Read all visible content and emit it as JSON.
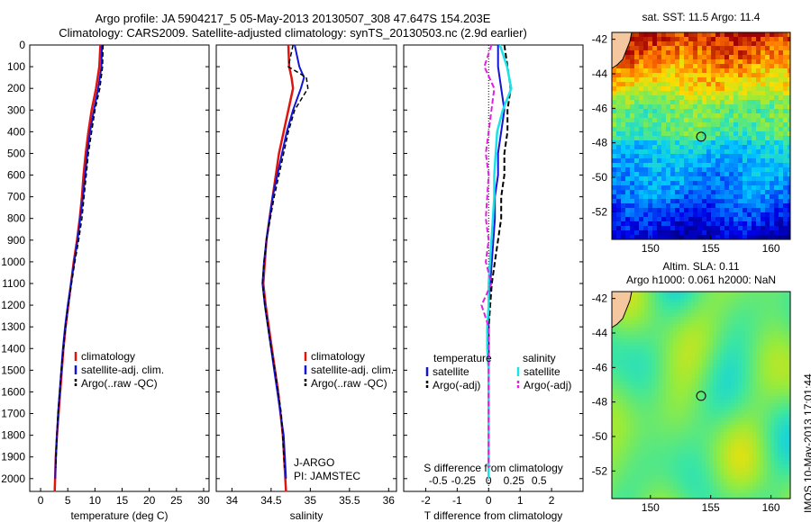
{
  "header": {
    "title_line1": "Argo profile: JA 5904217_5 05-May-2013 20130507_308 47.647S 154.203E",
    "title_line2": "Climatology: CARS2009. Satellite-adjusted climatology: synTS_20130503.nc (2.9d earlier)"
  },
  "colors": {
    "climatology": "#e0140f",
    "satellite": "#1414d6",
    "argo": "#000000",
    "salinity_satellite": "#19e3e6",
    "salinity_argo": "#e020e0"
  },
  "depth_ticks": [
    "0",
    "100",
    "200",
    "300",
    "400",
    "500",
    "600",
    "700",
    "800",
    "900",
    "1000",
    "1100",
    "1200",
    "1300",
    "1400",
    "1500",
    "1600",
    "1700",
    "1800",
    "1900",
    "2000"
  ],
  "panels": {
    "temperature": {
      "xlabel": "temperature (deg C)",
      "ticks": [
        "0",
        "5",
        "10",
        "15",
        "20",
        "25",
        "30"
      ],
      "legend": [
        "climatology",
        "satellite-adj. clim.",
        "Argo(..raw -QC)"
      ]
    },
    "salinity": {
      "xlabel": "salinity",
      "ticks": [
        "34",
        "34.5",
        "35",
        "35.5",
        "36"
      ],
      "legend": [
        "climatology",
        "satellite-adj. clim.",
        "Argo(..raw -QC)"
      ],
      "annotation1": "J-ARGO",
      "annotation2": "PI: JAMSTEC"
    },
    "difference": {
      "xlabel": "T difference from climatology",
      "top_label": "S difference from climatology",
      "t_ticks": [
        "-2",
        "-1",
        "0",
        "1",
        "2"
      ],
      "s_ticks": [
        "-0.5",
        "-0.25",
        "0",
        "0.25",
        "0.5"
      ],
      "legend_temp_title": "temperature",
      "legend_sal_title": "salinity",
      "legend_temp": [
        "satellite",
        "Argo(-adj)"
      ],
      "legend_sal": [
        "satellite",
        "Argo(-adj)"
      ]
    }
  },
  "maps": {
    "sst": {
      "title": "sat. SST: 11.5 Argo: 11.4",
      "yticks": [
        "-42",
        "-44",
        "-46",
        "-48",
        "-50",
        "-52"
      ],
      "xticks": [
        "150",
        "155",
        "160"
      ]
    },
    "sla": {
      "title1": "Altim. SLA: 0.11",
      "title2": "Argo h1000: 0.061 h2000: NaN",
      "yticks": [
        "-42",
        "-44",
        "-46",
        "-48",
        "-50",
        "-52"
      ],
      "xticks": [
        "150",
        "155",
        "160"
      ]
    }
  },
  "side_stamp": "IMOS 10-May-2013 17:01:44",
  "chart_data": [
    {
      "type": "line",
      "title": "",
      "xlabel": "temperature (deg C)",
      "ylabel": "",
      "xlim": [
        -2,
        31
      ],
      "ylim": [
        2050,
        0
      ],
      "series": [
        {
          "name": "climatology",
          "x": [
            11.0,
            10.8,
            10.2,
            9.4,
            8.8,
            8.3,
            7.9,
            7.6,
            7.2,
            6.7,
            6.1,
            5.6,
            5.1,
            4.6,
            4.2,
            3.9,
            3.6,
            3.3,
            3.0,
            2.8,
            2.6
          ],
          "y": [
            0,
            100,
            200,
            300,
            400,
            500,
            600,
            700,
            800,
            900,
            1000,
            1100,
            1200,
            1300,
            1400,
            1500,
            1600,
            1700,
            1800,
            1900,
            2060
          ]
        },
        {
          "name": "satellite-adj. clim.",
          "x": [
            11.3,
            11.2,
            10.6,
            9.8,
            9.1,
            8.6,
            8.2,
            7.8,
            7.3,
            6.8,
            6.2,
            5.6,
            5.0,
            4.5,
            4.1,
            3.8,
            3.5,
            3.2,
            3.0,
            2.8,
            2.7
          ],
          "y": [
            0,
            100,
            200,
            300,
            400,
            500,
            600,
            700,
            800,
            900,
            1000,
            1100,
            1200,
            1300,
            1400,
            1500,
            1600,
            1700,
            1800,
            1900,
            2000
          ]
        },
        {
          "name": "Argo(..raw -QC)",
          "x": [
            11.5,
            11.4,
            10.9,
            10.0,
            9.4,
            8.8,
            8.4,
            8.0,
            7.6,
            7.0,
            6.3,
            5.7,
            5.1,
            4.6,
            4.2,
            3.8,
            3.5,
            3.2,
            3.0,
            2.8
          ],
          "y": [
            0,
            100,
            200,
            300,
            400,
            500,
            600,
            700,
            800,
            900,
            1000,
            1100,
            1200,
            1300,
            1400,
            1500,
            1600,
            1700,
            1800,
            1950
          ]
        }
      ]
    },
    {
      "type": "line",
      "title": "",
      "xlabel": "salinity",
      "ylabel": "",
      "xlim": [
        33.8,
        36.1
      ],
      "ylim": [
        2050,
        0
      ],
      "series": [
        {
          "name": "climatology",
          "x": [
            34.72,
            34.73,
            34.76,
            34.78,
            34.72,
            34.66,
            34.6,
            34.56,
            34.52,
            34.48,
            34.44,
            34.42,
            34.4,
            34.43,
            34.47,
            34.51,
            34.55,
            34.59,
            34.62,
            34.65,
            34.69
          ],
          "y": [
            0,
            100,
            150,
            200,
            300,
            400,
            500,
            600,
            700,
            800,
            900,
            1000,
            1100,
            1200,
            1300,
            1400,
            1500,
            1600,
            1700,
            1800,
            2060
          ]
        },
        {
          "name": "satellite-adj. clim.",
          "x": [
            34.8,
            34.86,
            34.92,
            34.88,
            34.78,
            34.7,
            34.64,
            34.58,
            34.52,
            34.48,
            34.44,
            34.41,
            34.39,
            34.42,
            34.46,
            34.5,
            34.54,
            34.58,
            34.62,
            34.66,
            34.69
          ],
          "y": [
            0,
            100,
            150,
            200,
            300,
            400,
            500,
            600,
            700,
            800,
            900,
            1000,
            1100,
            1200,
            1300,
            1400,
            1500,
            1600,
            1700,
            1800,
            2000
          ]
        },
        {
          "name": "Argo(..raw -QC)",
          "x": [
            34.78,
            34.72,
            34.95,
            34.97,
            34.8,
            34.72,
            34.66,
            34.6,
            34.54,
            34.49,
            34.44,
            34.41,
            34.39,
            34.42,
            34.46,
            34.5,
            34.55,
            34.59,
            34.63,
            34.67
          ],
          "y": [
            0,
            100,
            150,
            200,
            300,
            400,
            500,
            600,
            700,
            800,
            900,
            1000,
            1100,
            1200,
            1300,
            1400,
            1500,
            1600,
            1700,
            1950
          ]
        }
      ]
    },
    {
      "type": "line",
      "title": "",
      "xlabel": "T difference from climatology",
      "ylabel": "",
      "xlim": [
        -2.7,
        3.0
      ],
      "ylim": [
        2050,
        0
      ],
      "series": [
        {
          "name": "satellite",
          "x": [
            0.3,
            0.3,
            0.4,
            0.5,
            0.4,
            0.3,
            0.3,
            0.2,
            0.2,
            0.15,
            0.1,
            0.05,
            0.0,
            0.0,
            0.0,
            0.0,
            0.0,
            0.0,
            0.0,
            0.0
          ],
          "y": [
            0,
            100,
            200,
            300,
            400,
            500,
            600,
            700,
            800,
            900,
            1000,
            1100,
            1200,
            1300,
            1400,
            1500,
            1600,
            1700,
            1800,
            2000
          ]
        },
        {
          "name": "Argo(-adj)",
          "x": [
            0.5,
            0.6,
            0.7,
            0.6,
            0.6,
            0.5,
            0.5,
            0.4,
            0.4,
            0.3,
            0.2,
            0.1,
            0.05,
            0.0,
            0.0,
            0.0,
            0.0,
            0.0,
            0.0
          ],
          "y": [
            0,
            100,
            200,
            300,
            400,
            500,
            600,
            700,
            800,
            900,
            1000,
            1100,
            1200,
            1300,
            1400,
            1500,
            1600,
            1700,
            1950
          ]
        },
        {
          "name": "satellite (salinity)",
          "x": [
            0.08,
            0.13,
            0.16,
            0.1,
            0.06,
            0.05,
            0.04,
            0.04,
            0.03,
            0.02,
            0.01,
            0.0,
            0.0,
            -0.01,
            -0.01,
            0.0,
            0.0,
            0.0,
            0.0,
            0.0
          ],
          "y": [
            0,
            100,
            200,
            300,
            400,
            500,
            600,
            700,
            800,
            900,
            1000,
            1100,
            1200,
            1300,
            1400,
            1500,
            1600,
            1700,
            1800,
            2000
          ]
        },
        {
          "name": "Argo(-adj) (salinity)",
          "x": [
            0.02,
            -0.03,
            0.04,
            0.02,
            0.0,
            -0.02,
            0.0,
            -0.01,
            -0.02,
            0.0,
            -0.02,
            0.02,
            -0.05,
            0.0,
            0.0,
            0.0,
            0.0,
            0.0,
            0.0
          ],
          "y": [
            0,
            100,
            200,
            300,
            400,
            500,
            600,
            700,
            800,
            900,
            1000,
            1100,
            1200,
            1300,
            1400,
            1500,
            1600,
            1700,
            1950
          ]
        }
      ]
    },
    {
      "type": "heatmap",
      "title": "sat. SST: 11.5 Argo: 11.4",
      "xlabel": "",
      "ylabel": "",
      "xlim": [
        146.8,
        161.6
      ],
      "ylim": [
        -53.6,
        -41.6
      ],
      "marker": {
        "lon": 154.203,
        "lat": -47.647
      }
    },
    {
      "type": "heatmap",
      "title": "Altim. SLA: 0.11",
      "xlabel": "",
      "ylabel": "",
      "xlim": [
        146.8,
        161.6
      ],
      "ylim": [
        -53.6,
        -41.6
      ],
      "marker": {
        "lon": 154.203,
        "lat": -47.647
      }
    }
  ]
}
